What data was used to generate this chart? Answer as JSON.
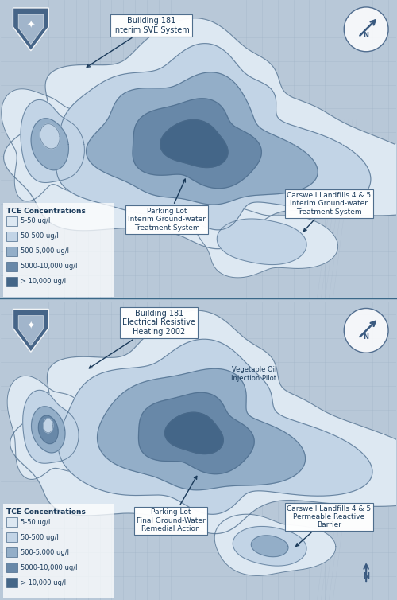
{
  "colors": {
    "background": "#b8c8d8",
    "map_streets": "#a8b8cc",
    "map_light": "#c0d0e0",
    "plume_5_50": "#dde8f2",
    "plume_50_500": "#c2d4e6",
    "plume_500_5000": "#93aec8",
    "plume_5000_10000": "#6888a8",
    "plume_10000": "#446688",
    "outline": "#4a6a8a",
    "text": "#1a3a5a",
    "arrow": "#1a3a5a",
    "annotation_bg": "#ffffff",
    "annotation_edge": "#4a6a8a",
    "legend_bg": "#dce8f4",
    "badge_blue": "#3a5a80",
    "badge_light": "#c8d8e8"
  },
  "panel1": {
    "legend_title": "TCE Concentrations",
    "legend_items": [
      "5-50 ug/l",
      "50-500 ug/l",
      "500-5,000 ug/l",
      "5000-10,000 ug/l",
      "> 10,000 ug/l"
    ],
    "legend_colors": [
      "#dde8f2",
      "#c2d4e6",
      "#93aec8",
      "#6888a8",
      "#446688"
    ]
  },
  "panel2": {
    "legend_title": "TCE Concentrations",
    "legend_items": [
      "5-50 ug/l",
      "50-500 ug/l",
      "500-5,000 ug/l",
      "5000-10,000 ug/l",
      "> 10,000 ug/l"
    ],
    "legend_colors": [
      "#dde8f2",
      "#c2d4e6",
      "#93aec8",
      "#6888a8",
      "#446688"
    ]
  }
}
